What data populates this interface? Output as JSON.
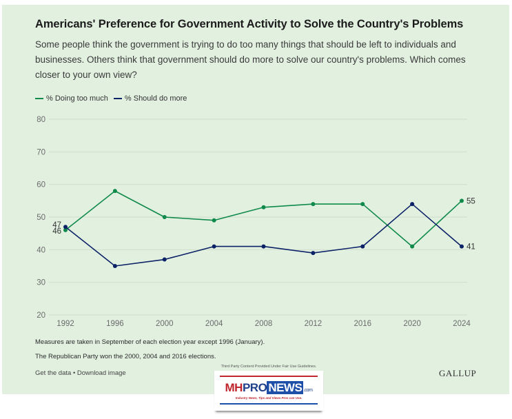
{
  "header": {
    "title": "Americans' Preference for Government Activity to Solve the Country's Problems",
    "subtitle": "Some people think the government is trying to do too many things that should be left to individuals and businesses. Others think that government should do more to solve our country's problems. Which comes closer to your own view?"
  },
  "legend": [
    {
      "label": "% Doing too much",
      "color": "#0f8a4a"
    },
    {
      "label": "% Should do more",
      "color": "#0c2266"
    }
  ],
  "notes": [
    "Measures are taken in September of each election year except 1996 (January).",
    "The Republican Party won the 2000, 2004 and 2016 elections."
  ],
  "links": {
    "get_data": "Get the data",
    "separator": "•",
    "download": "Download image"
  },
  "brand": "GALLUP",
  "badge": {
    "caption": "Third Party Content Provided Under Fair Use Guidelines.",
    "logo_mh": "MH",
    "logo_pro": "PRO",
    "logo_news": "NEWS",
    "logo_com": ".com",
    "tagline": "Industry News, Tips and Views Pros can Use."
  },
  "chart_data": {
    "type": "line",
    "title": "Americans' Preference for Government Activity to Solve the Country's Problems",
    "xlabel": "",
    "ylabel": "",
    "x": [
      "1992",
      "1996",
      "2000",
      "2004",
      "2008",
      "2012",
      "2016",
      "2020",
      "2024"
    ],
    "ylim": [
      20,
      80
    ],
    "yticks": [
      20,
      30,
      40,
      50,
      60,
      70,
      80
    ],
    "grid": true,
    "legend_position": "top-left",
    "series": [
      {
        "name": "% Doing too much",
        "color": "#0f8a4a",
        "values": [
          46,
          58,
          50,
          49,
          53,
          54,
          54,
          41,
          55
        ]
      },
      {
        "name": "% Should do more",
        "color": "#0c2266",
        "values": [
          47,
          35,
          37,
          41,
          41,
          39,
          41,
          54,
          41
        ]
      }
    ],
    "data_labels": [
      {
        "series": 1,
        "index": 0,
        "text": "47"
      },
      {
        "series": 0,
        "index": 0,
        "text": "46"
      },
      {
        "series": 0,
        "index": 8,
        "text": "55"
      },
      {
        "series": 1,
        "index": 8,
        "text": "41"
      }
    ]
  }
}
